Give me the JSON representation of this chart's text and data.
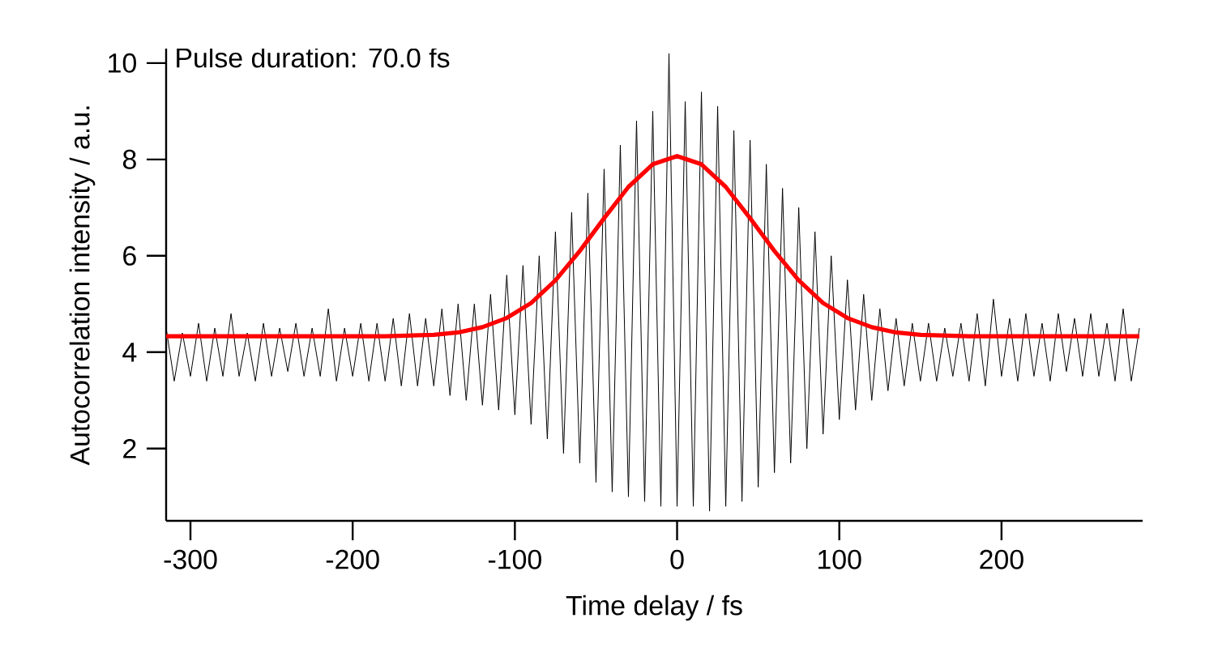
{
  "chart_data": {
    "type": "line",
    "xlabel": "Time delay / fs",
    "ylabel": "Autocorrelation intensity / a.u.",
    "annotations": [
      "Pulse duration: 70.0 fs"
    ],
    "xlim": [
      -315,
      287
    ],
    "ylim": [
      0.5,
      10.3
    ],
    "xticks": [
      -300,
      -200,
      -100,
      0,
      100,
      200
    ],
    "yticks": [
      2,
      4,
      6,
      8,
      10
    ],
    "marker": "none",
    "line_style": "solid",
    "series": [
      {
        "color": "#000000",
        "x": [
          -315,
          -310,
          -305,
          -300,
          -295,
          -290,
          -285,
          -280,
          -275,
          -270,
          -265,
          -260,
          -255,
          -250,
          -245,
          -240,
          -235,
          -230,
          -225,
          -220,
          -215,
          -210,
          -205,
          -200,
          -195,
          -190,
          -185,
          -180,
          -175,
          -170,
          -165,
          -160,
          -155,
          -150,
          -145,
          -140,
          -135,
          -130,
          -125,
          -120,
          -115,
          -110,
          -105,
          -100,
          -95,
          -90,
          -85,
          -80,
          -75,
          -70,
          -65,
          -60,
          -55,
          -50,
          -45,
          -40,
          -35,
          -30,
          -25,
          -20,
          -15,
          -10,
          -5,
          0,
          5,
          10,
          15,
          20,
          25,
          30,
          35,
          40,
          45,
          50,
          55,
          60,
          65,
          70,
          75,
          80,
          85,
          90,
          95,
          100,
          105,
          110,
          115,
          120,
          125,
          130,
          135,
          140,
          145,
          150,
          155,
          160,
          165,
          170,
          175,
          180,
          185,
          190,
          195,
          200,
          205,
          210,
          215,
          220,
          225,
          230,
          235,
          240,
          245,
          250,
          255,
          260,
          265,
          270,
          275,
          280,
          285
        ],
        "values": [
          4.5,
          3.4,
          4.4,
          3.5,
          4.6,
          3.4,
          4.5,
          3.5,
          4.8,
          3.5,
          4.4,
          3.4,
          4.6,
          3.5,
          4.5,
          3.6,
          4.6,
          3.5,
          4.5,
          3.5,
          4.9,
          3.4,
          4.5,
          3.5,
          4.6,
          3.4,
          4.6,
          3.4,
          4.7,
          3.3,
          4.8,
          3.3,
          4.7,
          3.3,
          4.9,
          3.1,
          5.0,
          3.0,
          5.0,
          2.9,
          5.2,
          2.8,
          5.6,
          2.7,
          5.8,
          2.5,
          6.0,
          2.2,
          6.5,
          1.9,
          6.9,
          1.7,
          7.3,
          1.3,
          7.8,
          1.1,
          8.3,
          1.0,
          8.8,
          0.9,
          9.0,
          0.8,
          10.2,
          0.8,
          9.2,
          0.8,
          9.4,
          0.7,
          9.1,
          0.8,
          8.6,
          0.9,
          8.4,
          1.2,
          7.9,
          1.5,
          7.4,
          1.7,
          7.0,
          2.0,
          6.5,
          2.3,
          6.0,
          2.6,
          5.5,
          2.8,
          5.2,
          3.0,
          4.9,
          3.2,
          4.7,
          3.3,
          4.6,
          3.4,
          4.6,
          3.4,
          4.5,
          3.5,
          4.6,
          3.4,
          4.8,
          3.3,
          5.1,
          3.5,
          4.7,
          3.4,
          4.8,
          3.5,
          4.6,
          3.4,
          4.8,
          3.6,
          4.7,
          3.5,
          4.8,
          3.5,
          4.6,
          3.4,
          4.9,
          3.4,
          4.5
        ]
      },
      {
        "color": "#ff0000",
        "x": [
          -315,
          -180,
          -150,
          -135,
          -120,
          -105,
          -90,
          -75,
          -60,
          -45,
          -30,
          -15,
          0,
          15,
          30,
          45,
          60,
          75,
          90,
          105,
          120,
          135,
          150,
          180,
          285
        ],
        "values": [
          4.33,
          4.33,
          4.36,
          4.41,
          4.52,
          4.71,
          5.02,
          5.49,
          6.1,
          6.78,
          7.43,
          7.9,
          8.07,
          7.9,
          7.43,
          6.78,
          6.1,
          5.49,
          5.02,
          4.71,
          4.52,
          4.41,
          4.36,
          4.33,
          4.33
        ]
      }
    ]
  }
}
